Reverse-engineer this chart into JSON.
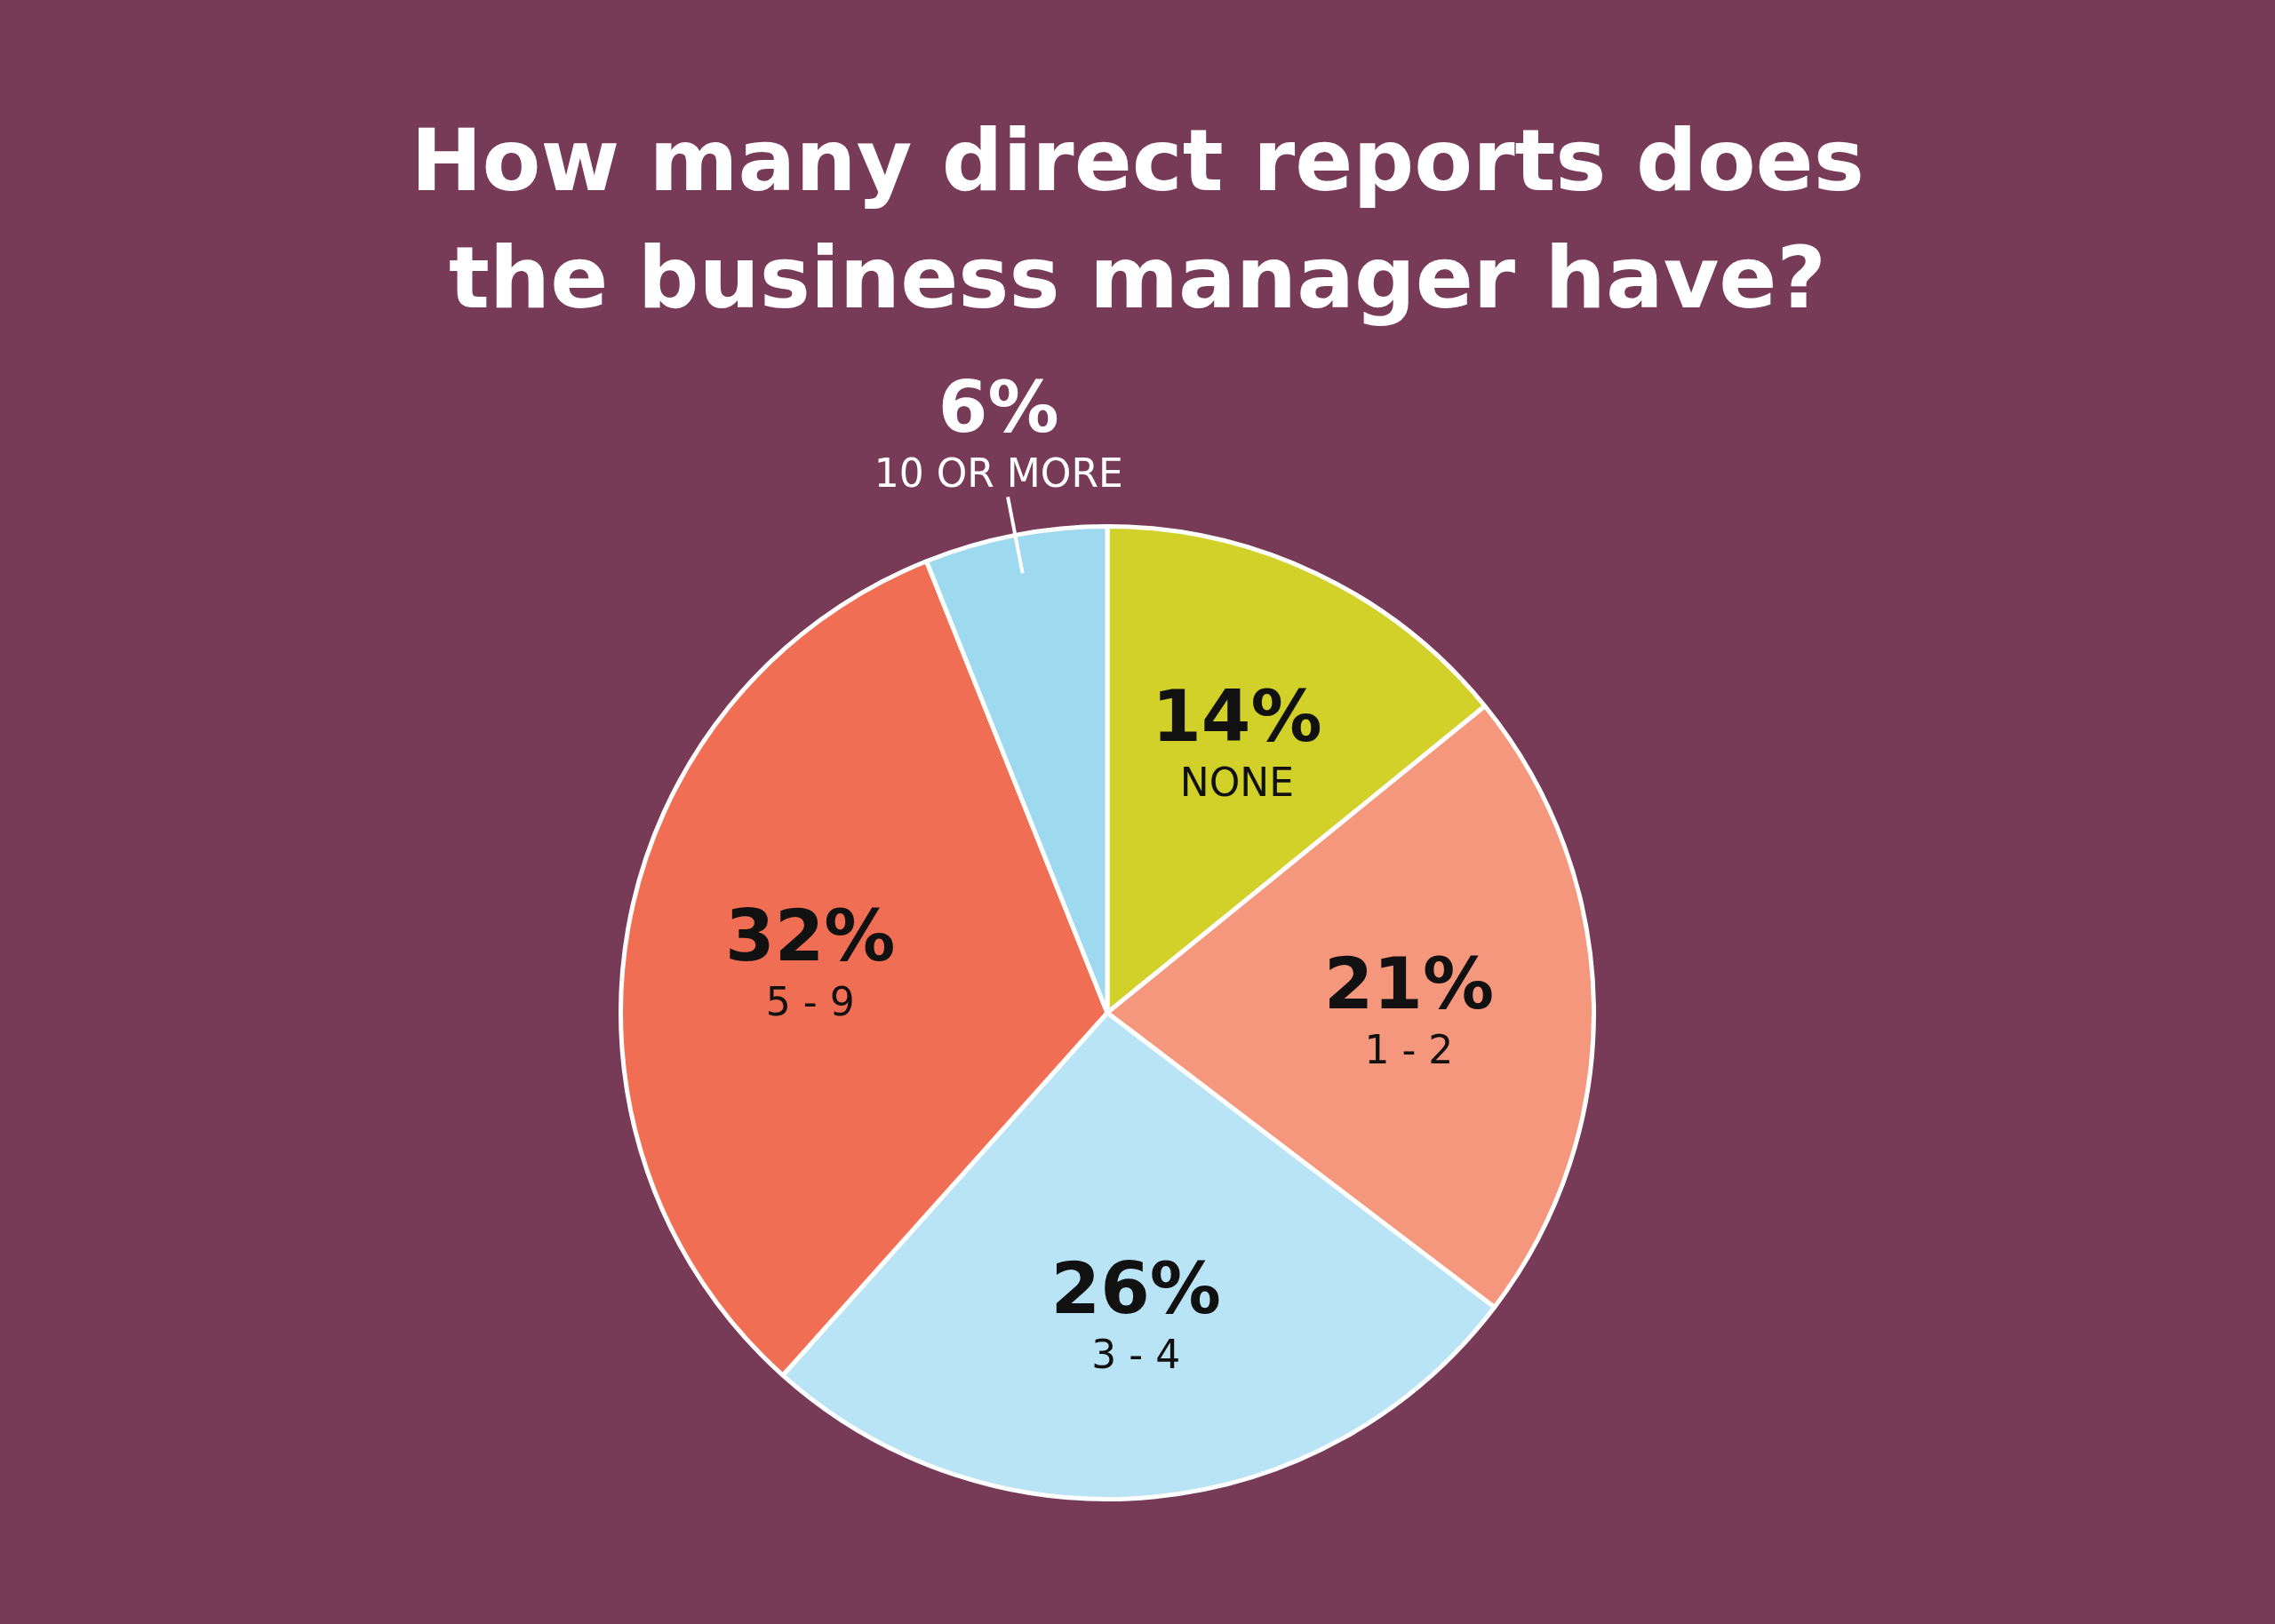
{
  "chart_data": {
    "type": "pie",
    "title": "How many direct reports does the business manager have?",
    "categories": [
      "NONE",
      "1 - 2",
      "3 - 4",
      "5 - 9",
      "10 OR MORE"
    ],
    "values": [
      14,
      21,
      26,
      32,
      6
    ],
    "colors": [
      "#d2d12a",
      "#f5977c",
      "#b9e4f5",
      "#f06e53",
      "#9ddaf0"
    ],
    "value_labels": [
      "14%",
      "21%",
      "26%",
      "32%",
      "6%"
    ],
    "legend": false
  }
}
